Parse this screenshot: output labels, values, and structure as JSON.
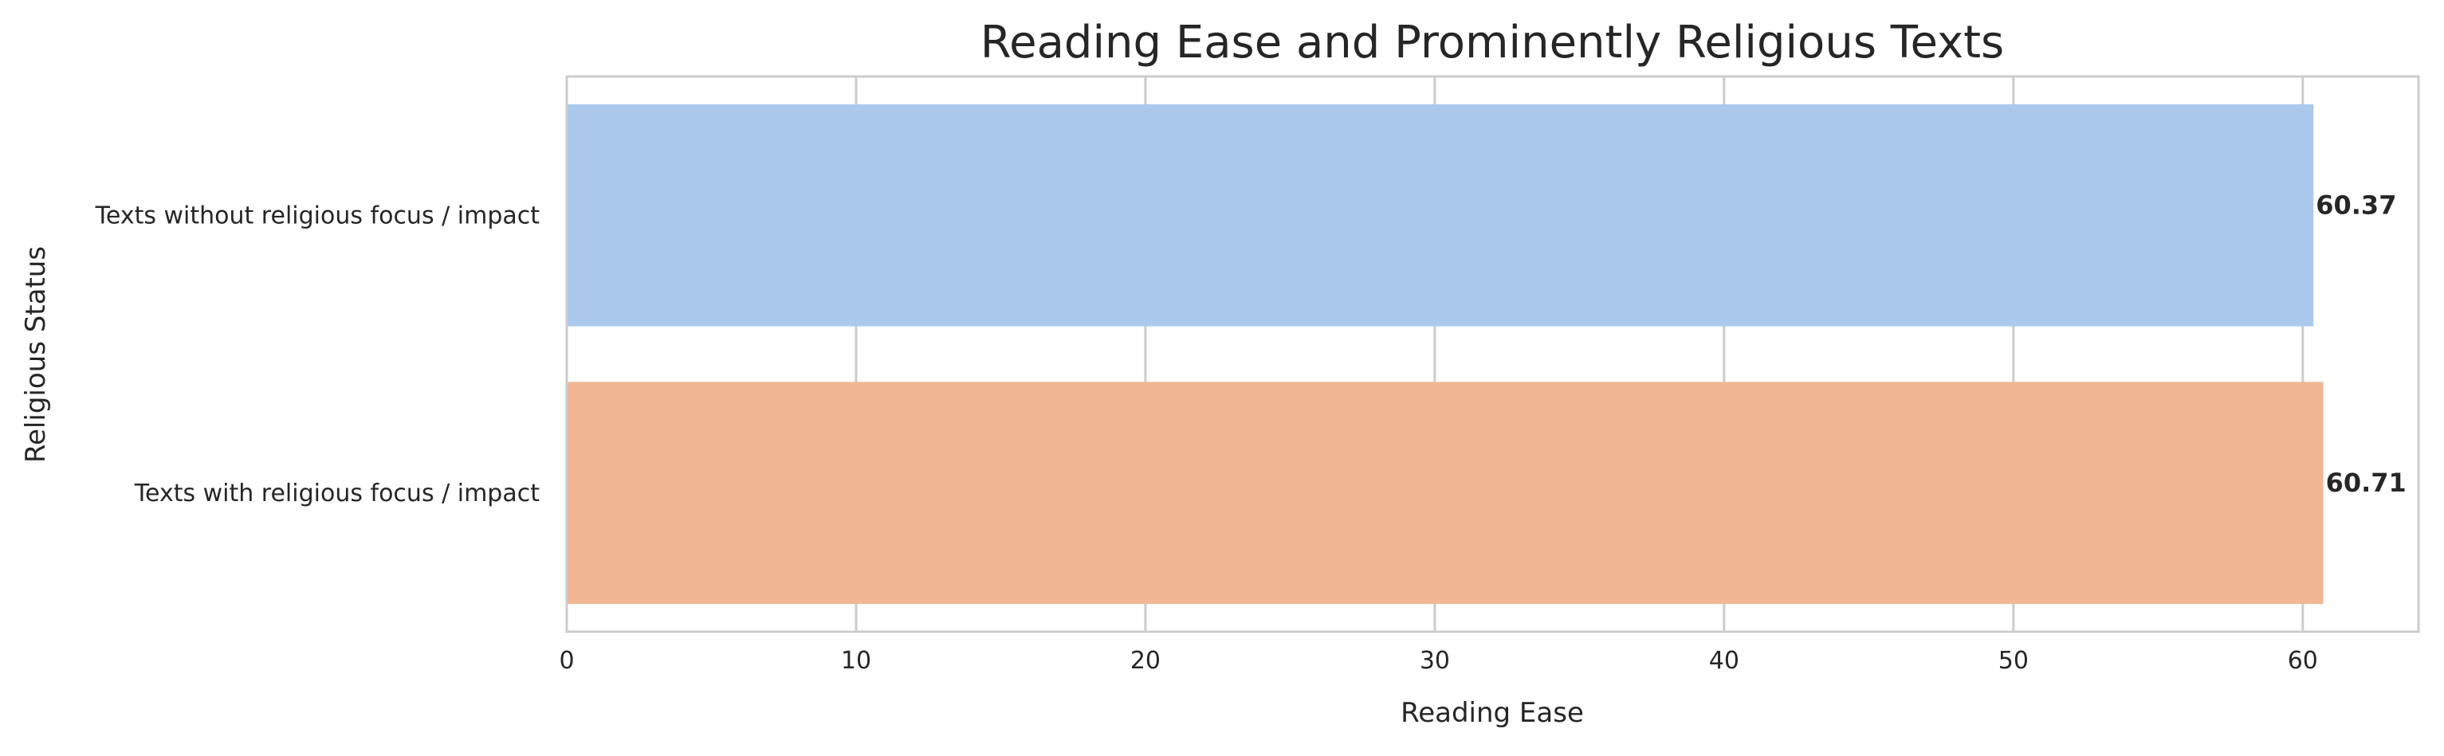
{
  "chart_data": {
    "type": "bar",
    "orientation": "horizontal",
    "title": "Reading Ease and Prominently Religious Texts",
    "xlabel": "Reading Ease",
    "ylabel": "Religious Status",
    "categories": [
      "Texts without religious focus / impact",
      "Texts with religious focus / impact"
    ],
    "values": [
      60.37,
      60.71
    ],
    "value_labels": [
      "60.37",
      "60.71"
    ],
    "colors": [
      "#abc9ec",
      "#f0b792"
    ],
    "xlim": [
      0,
      64
    ],
    "xticks": [
      0,
      10,
      20,
      30,
      40,
      50,
      60
    ],
    "xtick_labels": [
      "0",
      "10",
      "20",
      "30",
      "40",
      "50",
      "60"
    ],
    "grid": true,
    "legend": "none"
  }
}
